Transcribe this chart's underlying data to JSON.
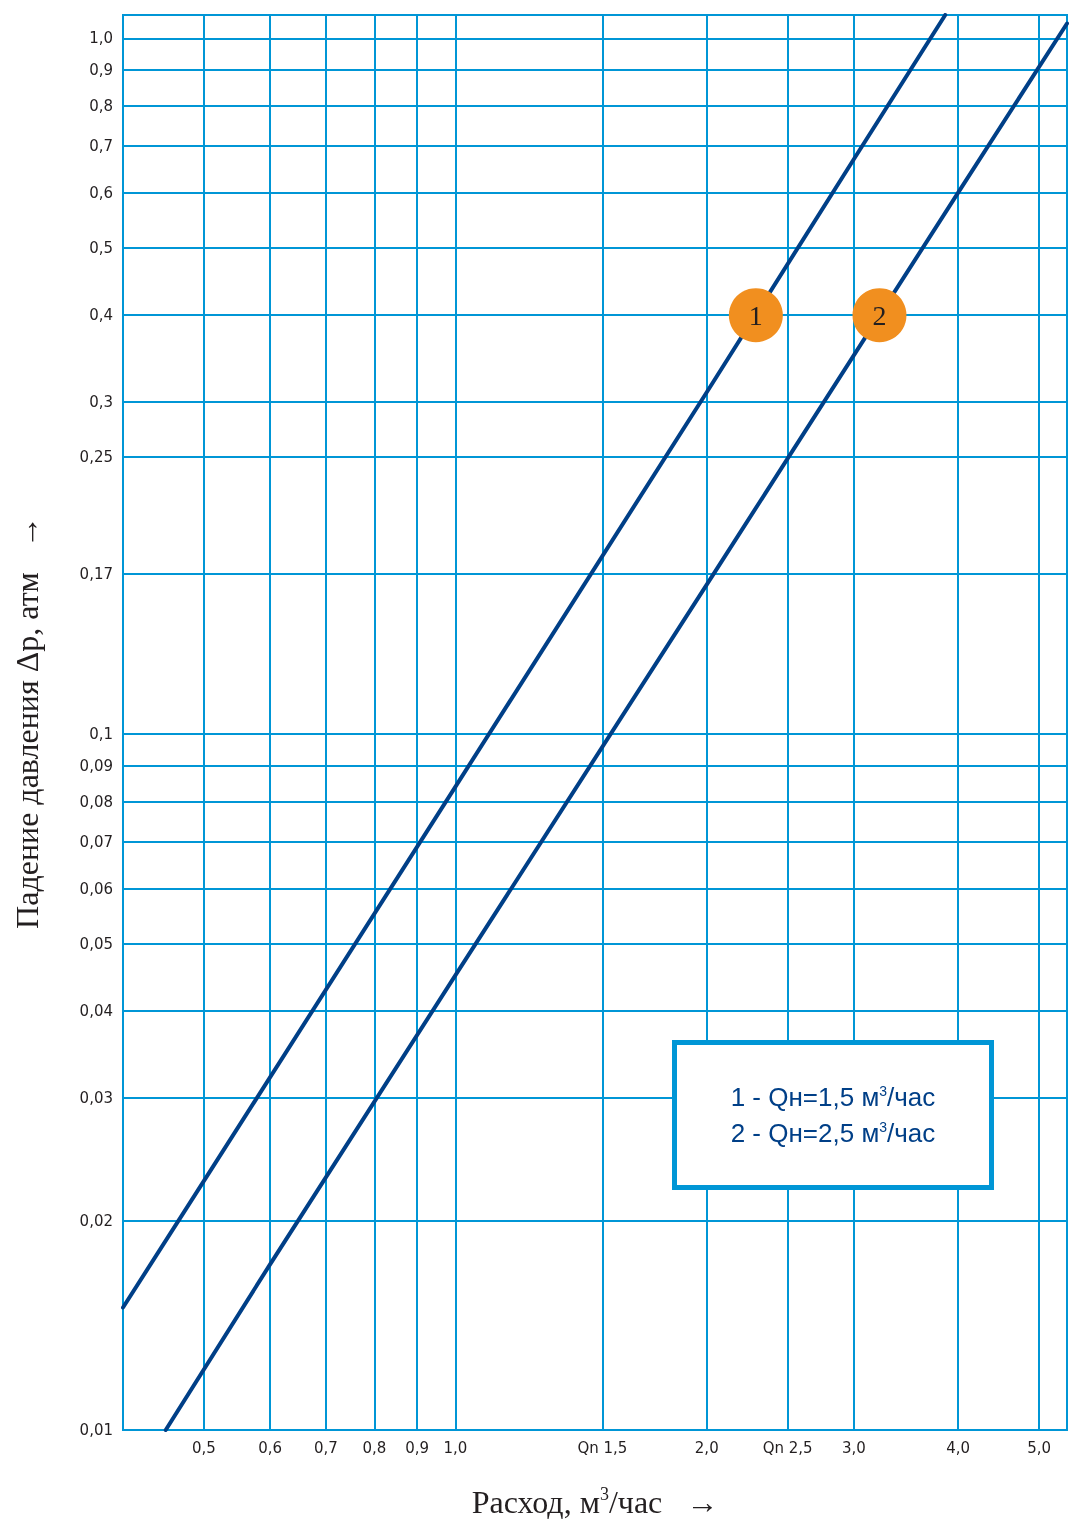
{
  "chart_data": {
    "type": "line",
    "xlabel": "Расход, м$^{3}$/час   →",
    "ylabel": "Падение давления Δр, атм   →",
    "log": "xy",
    "grid": true,
    "marker": "none",
    "line_style": "solid",
    "xlim": [
      0.4,
      5.4
    ],
    "ylim": [
      0.01,
      1.08
    ],
    "xticks": [
      {
        "value": 0.5,
        "label": "0,5"
      },
      {
        "value": 0.6,
        "label": "0,6"
      },
      {
        "value": 0.7,
        "label": "0,7"
      },
      {
        "value": 0.8,
        "label": "0,8"
      },
      {
        "value": 0.9,
        "label": "0,9"
      },
      {
        "value": 1.0,
        "label": "1,0"
      },
      {
        "value": 1.5,
        "label": "Qn 1,5"
      },
      {
        "value": 2.0,
        "label": "2,0"
      },
      {
        "value": 2.5,
        "label": "Qn 2,5"
      },
      {
        "value": 3.0,
        "label": "3,0"
      },
      {
        "value": 4.0,
        "label": "4,0"
      },
      {
        "value": 5.0,
        "label": "5,0"
      }
    ],
    "yticks": [
      {
        "value": 0.01,
        "label": "0,01"
      },
      {
        "value": 0.02,
        "label": "0,02"
      },
      {
        "value": 0.03,
        "label": "0,03"
      },
      {
        "value": 0.04,
        "label": "0,04"
      },
      {
        "value": 0.05,
        "label": "0,05"
      },
      {
        "value": 0.06,
        "label": "0,06"
      },
      {
        "value": 0.07,
        "label": "0,07"
      },
      {
        "value": 0.08,
        "label": "0,08"
      },
      {
        "value": 0.09,
        "label": "0,09"
      },
      {
        "value": 0.1,
        "label": "0,1"
      },
      {
        "value": 0.17,
        "label": "0,17"
      },
      {
        "value": 0.25,
        "label": "0,25"
      },
      {
        "value": 0.3,
        "label": "0,3"
      },
      {
        "value": 0.4,
        "label": "0,4"
      },
      {
        "value": 0.5,
        "label": "0,5"
      },
      {
        "value": 0.6,
        "label": "0,6"
      },
      {
        "value": 0.7,
        "label": "0,7"
      },
      {
        "value": 0.8,
        "label": "0,8"
      },
      {
        "value": 0.9,
        "label": "0,9"
      },
      {
        "value": 1.0,
        "label": "1,0"
      }
    ],
    "series": [
      {
        "color": "#003f87",
        "x": [
          0.4,
          0.5,
          1.0,
          2.0,
          3.0,
          3.86
        ],
        "values": [
          0.015,
          0.0228,
          0.084,
          0.31,
          0.67,
          1.08
        ]
      },
      {
        "color": "#003f87",
        "x": [
          0.45,
          0.6,
          1.0,
          2.0,
          4.0,
          5.4
        ],
        "values": [
          0.01,
          0.0173,
          0.045,
          0.164,
          0.6,
          1.05
        ]
      }
    ],
    "annotations": [
      {
        "text": "1",
        "x": 2.29,
        "y": 0.4
      },
      {
        "text": "2",
        "x": 3.22,
        "y": 0.4
      },
      "1 - Qн=1,5 м$^{3}$/час",
      "2 - Qн=2,5 м$^{3}$/час"
    ]
  }
}
